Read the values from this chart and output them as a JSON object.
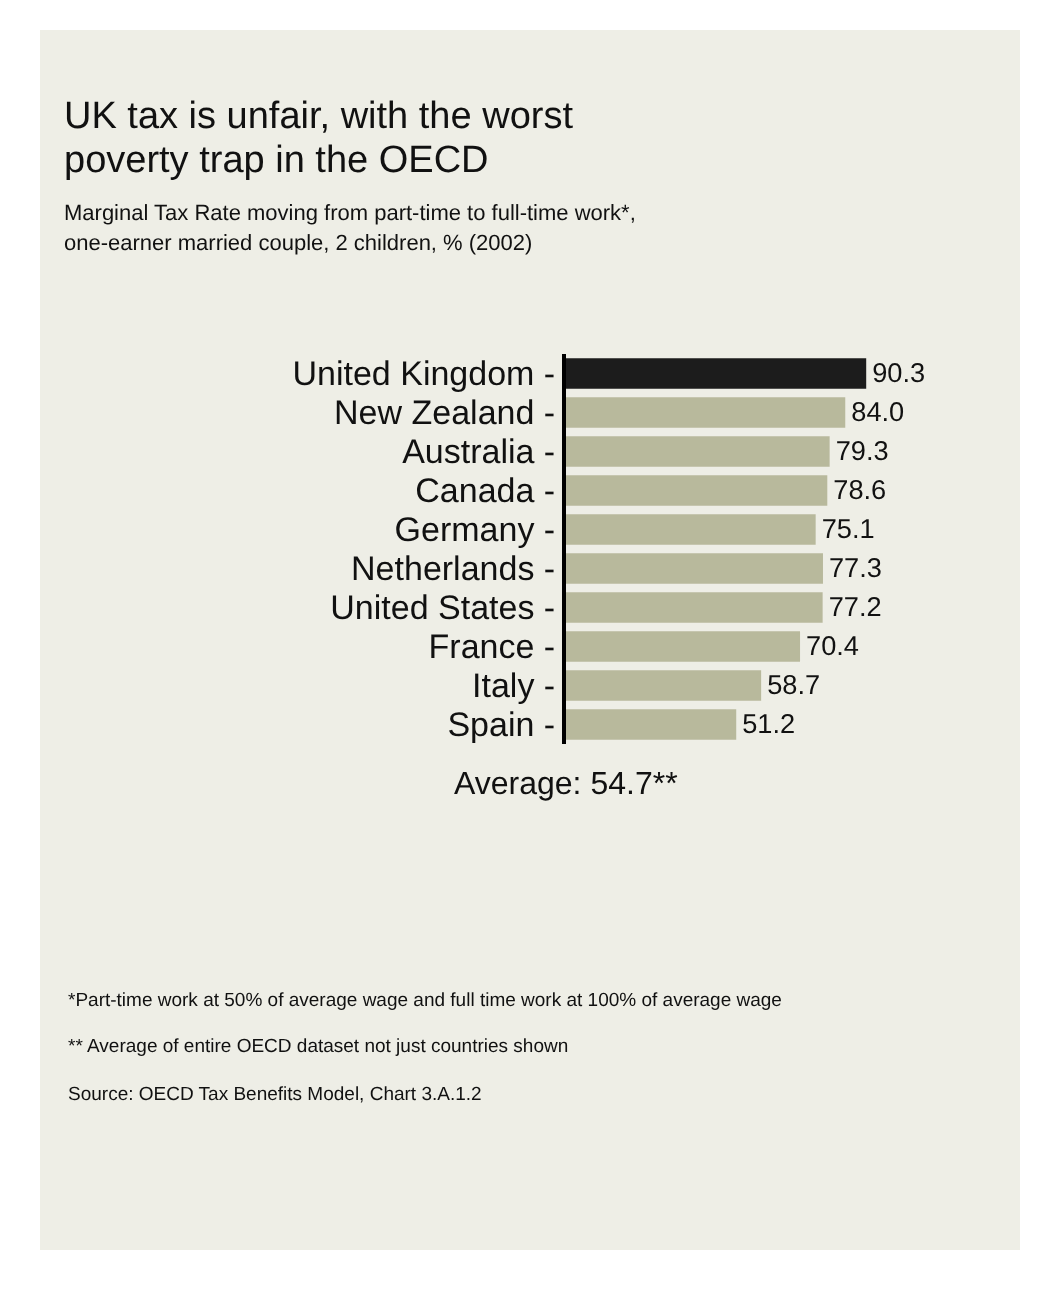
{
  "chart_data": {
    "type": "bar",
    "orientation": "horizontal",
    "title": "UK tax is unfair, with the worst poverty trap in the OECD",
    "subtitle": "Marginal Tax Rate moving from part-time to full-time work*, one-earner married couple, 2 children, % (2002)",
    "categories": [
      "United Kingdom -",
      "New Zealand -",
      "Australia -",
      "Canada -",
      "Germany -",
      "Netherlands -",
      "United States -",
      "France -",
      "Italy -",
      "Spain -"
    ],
    "values": [
      90.3,
      84.0,
      79.3,
      78.6,
      75.1,
      77.3,
      77.2,
      70.4,
      58.7,
      51.2
    ],
    "value_labels": [
      "90.3",
      "84.0",
      "79.3",
      "78.6",
      "75.1",
      "77.3",
      "77.2",
      "70.4",
      "58.7",
      "51.2"
    ],
    "colors": [
      "#1c1c1c",
      "#b8b99c",
      "#b8b99c",
      "#b8b99c",
      "#b8b99c",
      "#b8b99c",
      "#b8b99c",
      "#b8b99c",
      "#b8b99c",
      "#b8b99c"
    ],
    "annotations": [
      "Average: 54.7**",
      "*Part-time work at 50% of average wage and full time work at 100% of average wage",
      "** Average of entire OECD dataset not just countries shown",
      "Source: OECD Tax Benefits Model, Chart 3.A.1.2"
    ]
  }
}
